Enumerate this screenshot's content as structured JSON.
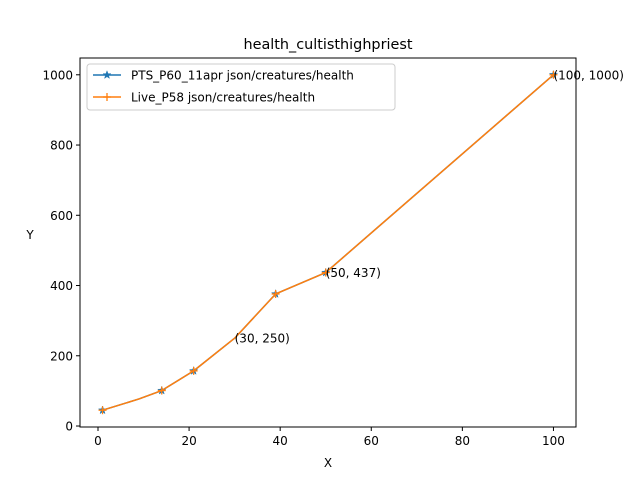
{
  "chart_data": {
    "type": "line",
    "title": "health_cultisthighpriest",
    "xlabel": "X",
    "ylabel": "Y",
    "xlim": [
      -3.95,
      104.95
    ],
    "ylim": [
      -2.8,
      1047.8
    ],
    "xticks": [
      0,
      20,
      40,
      60,
      80,
      100
    ],
    "yticks": [
      0,
      200,
      400,
      600,
      800,
      1000
    ],
    "legend_position": "upper-left",
    "grid": false,
    "series": [
      {
        "name": "PTS_P60_11apr json/creatures/health",
        "color": "#1f77b4",
        "marker": "star",
        "x": [
          1,
          9,
          14,
          21,
          30,
          39,
          50,
          100
        ],
        "y": [
          45,
          77,
          101,
          157,
          250,
          376,
          437,
          1000
        ]
      },
      {
        "name": "Live_P58 json/creatures/health",
        "color": "#ff7f0e",
        "marker": "plus",
        "x": [
          1,
          9,
          14,
          21,
          30,
          39,
          50,
          100
        ],
        "y": [
          45,
          77,
          101,
          157,
          250,
          376,
          437,
          1000
        ]
      }
    ],
    "annotations": [
      {
        "text": "(30, 250)",
        "x": 30,
        "y": 250
      },
      {
        "text": "(50, 437)",
        "x": 50,
        "y": 437
      },
      {
        "text": "(100, 1000)",
        "x": 100,
        "y": 1000
      }
    ]
  }
}
